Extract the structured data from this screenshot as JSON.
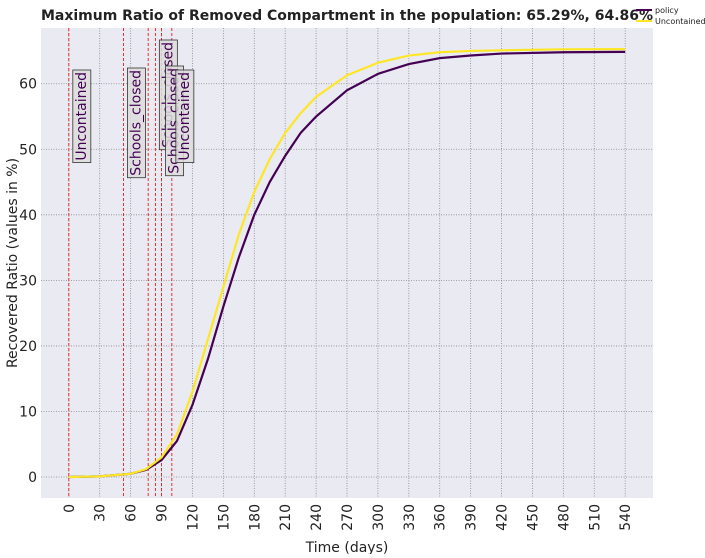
{
  "chart_data": {
    "type": "line",
    "title": "Maximum Ratio of Removed Compartment in the population: 65.29%, 64.86%",
    "xlabel": "Time (days)",
    "ylabel": "Recovered Ratio (values in %)",
    "x": [
      0,
      30,
      60,
      75,
      90,
      105,
      120,
      135,
      150,
      165,
      180,
      195,
      210,
      225,
      240,
      270,
      300,
      330,
      360,
      390,
      420,
      480,
      540
    ],
    "series": [
      {
        "name": "policy",
        "color": "#440154",
        "values": [
          0,
          0.1,
          0.5,
          1.1,
          2.6,
          5.5,
          11,
          18,
          26,
          33.5,
          40,
          45,
          49,
          52.5,
          55,
          59,
          61.5,
          63,
          63.9,
          64.3,
          64.6,
          64.8,
          64.86
        ]
      },
      {
        "name": "Uncontained",
        "color": "#fde725",
        "values": [
          0,
          0.1,
          0.5,
          1.2,
          3,
          6.5,
          13,
          21,
          29,
          37,
          43.5,
          48.5,
          52.5,
          55.5,
          58,
          61.3,
          63.2,
          64.3,
          64.8,
          65,
          65.1,
          65.25,
          65.29
        ]
      }
    ],
    "policy_days": [
      0,
      53,
      77,
      84,
      90,
      100
    ],
    "annotations": [
      {
        "x": 0,
        "label": "Uncontained"
      },
      {
        "x": 53,
        "label": "Schools_closed"
      },
      {
        "x": 84,
        "label": "Schools_closed"
      },
      {
        "x": 90,
        "label": "Schools_closed"
      },
      {
        "x": 100,
        "label": "Uncontained"
      }
    ],
    "xlim": [
      -27,
      567
    ],
    "ylim": [
      -3.2,
      68.5
    ],
    "xticks": [
      0,
      30,
      60,
      90,
      120,
      150,
      180,
      210,
      240,
      270,
      300,
      330,
      360,
      390,
      420,
      450,
      480,
      510,
      540
    ],
    "yticks": [
      0,
      10,
      20,
      30,
      40,
      50,
      60
    ],
    "grid": true,
    "legend": "upper right"
  }
}
